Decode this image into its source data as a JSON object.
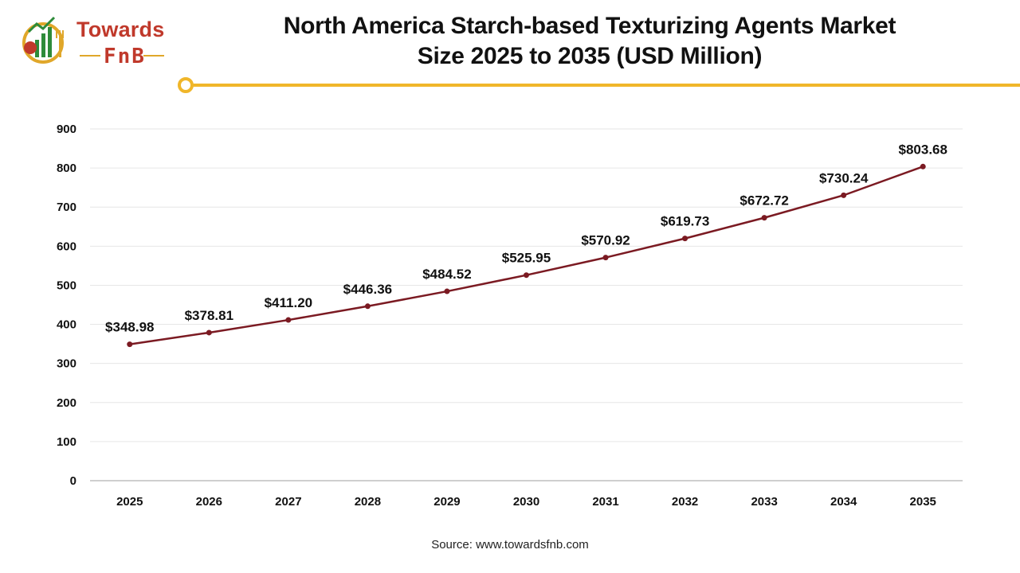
{
  "logo": {
    "word1": "Towards",
    "word2": "FnB",
    "colors": {
      "red": "#c0392b",
      "gold": "#e0a72a",
      "green": "#2e8b3a"
    }
  },
  "header": {
    "title_line1": "North America Starch-based Texturizing Agents Market",
    "title_line2": "Size 2025 to 2035 (USD Million)"
  },
  "footer": {
    "source": "Source: www.towardsfnb.com"
  },
  "chart_data": {
    "type": "line",
    "title": "North America Starch-based Texturizing Agents Market Size 2025 to 2035 (USD Million)",
    "xlabel": "",
    "ylabel": "",
    "categories": [
      "2025",
      "2026",
      "2027",
      "2028",
      "2029",
      "2030",
      "2031",
      "2032",
      "2033",
      "2034",
      "2035"
    ],
    "series": [
      {
        "values": [
          348.98,
          378.81,
          411.2,
          446.36,
          484.52,
          525.95,
          570.92,
          619.73,
          672.72,
          730.24,
          803.68
        ],
        "data_labels": [
          "$348.98",
          "$378.81",
          "$411.20",
          "$446.36",
          "$484.52",
          "$525.95",
          "$570.92",
          "$619.73",
          "$672.72",
          "$730.24",
          "$803.68"
        ],
        "color": "#7b1a22"
      }
    ],
    "ylim": [
      0,
      900
    ],
    "yticks": [
      0,
      100,
      200,
      300,
      400,
      500,
      600,
      700,
      800,
      900
    ],
    "grid": true,
    "legend": "none"
  }
}
